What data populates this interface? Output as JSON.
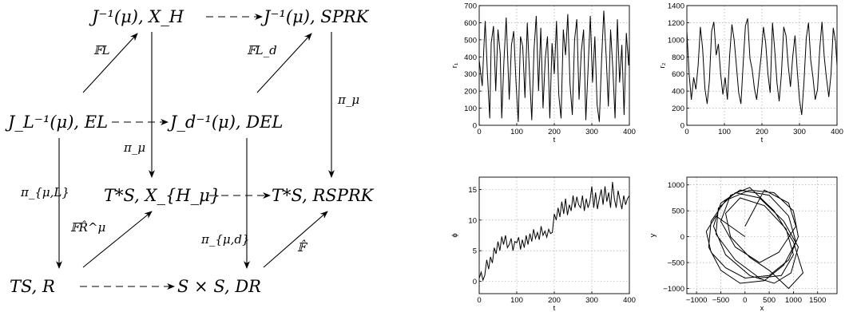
{
  "diagram": {
    "nodes": {
      "top_left": "J⁻¹(μ), X_H",
      "top_right": "J⁻¹(μ), SPRK",
      "mid_left": "J_L⁻¹(μ), EL",
      "mid_right": "J_d⁻¹(μ), DEL",
      "red_left": "T*S, X_{H_μ}",
      "red_right": "T*S, RSPRK",
      "bot_left": "TS, R",
      "bot_right": "S × S, DR"
    },
    "labels": {
      "fl": "𝔽L",
      "fld": "𝔽L_d",
      "pi_mu": "π_μ",
      "pi_mu_right": "π_μ",
      "pi_mu_l": "π_{μ,L}",
      "pi_mu_d": "π_{μ,d}",
      "frhat": "𝔽R̂^μ",
      "fhat": "𝔽̂"
    }
  },
  "chart_data": [
    {
      "type": "line",
      "xlabel": "t",
      "ylabel": "r₁",
      "xlim": [
        0,
        400
      ],
      "ylim": [
        0,
        700
      ],
      "xticks": [
        0,
        100,
        200,
        300,
        400
      ],
      "yticks": [
        0,
        100,
        200,
        300,
        400,
        500,
        600,
        700
      ],
      "grid": true,
      "x": [
        0,
        8,
        12,
        16,
        22,
        28,
        32,
        38,
        44,
        50,
        56,
        60,
        66,
        72,
        80,
        86,
        92,
        98,
        104,
        110,
        116,
        122,
        128,
        134,
        140,
        146,
        152,
        158,
        164,
        170,
        176,
        182,
        188,
        194,
        200,
        206,
        212,
        218,
        224,
        230,
        236,
        242,
        248,
        254,
        260,
        266,
        272,
        278,
        284,
        290,
        296,
        302,
        308,
        314,
        320,
        326,
        332,
        338,
        344,
        350,
        356,
        362,
        368,
        374,
        380,
        386,
        392,
        398,
        400
      ],
      "values": [
        380,
        230,
        430,
        610,
        300,
        40,
        480,
        580,
        200,
        560,
        420,
        40,
        380,
        630,
        150,
        470,
        550,
        250,
        20,
        520,
        460,
        160,
        600,
        300,
        30,
        440,
        640,
        200,
        570,
        100,
        390,
        520,
        40,
        480,
        300,
        610,
        180,
        40,
        560,
        410,
        650,
        240,
        60,
        500,
        620,
        150,
        430,
        560,
        30,
        330,
        640,
        250,
        520,
        120,
        20,
        380,
        670,
        410,
        110,
        560,
        330,
        40,
        620,
        250,
        470,
        60,
        540,
        350,
        480
      ]
    },
    {
      "type": "line",
      "xlabel": "t",
      "ylabel": "r₂",
      "xlim": [
        0,
        400
      ],
      "ylim": [
        0,
        1400
      ],
      "xticks": [
        0,
        100,
        200,
        300,
        400
      ],
      "yticks": [
        0,
        200,
        400,
        600,
        800,
        1000,
        1200,
        1400
      ],
      "grid": true,
      "x": [
        0,
        6,
        12,
        18,
        24,
        30,
        36,
        42,
        48,
        54,
        60,
        66,
        72,
        78,
        84,
        90,
        96,
        102,
        108,
        114,
        120,
        126,
        132,
        138,
        144,
        150,
        156,
        162,
        168,
        174,
        180,
        186,
        192,
        198,
        204,
        210,
        216,
        222,
        228,
        234,
        240,
        246,
        252,
        258,
        264,
        270,
        276,
        282,
        288,
        294,
        300,
        306,
        312,
        318,
        324,
        330,
        336,
        342,
        348,
        354,
        360,
        366,
        372,
        378,
        384,
        390,
        396,
        400
      ],
      "values": [
        1100,
        600,
        300,
        560,
        420,
        700,
        1150,
        900,
        430,
        250,
        520,
        1100,
        1210,
        820,
        950,
        600,
        360,
        560,
        300,
        820,
        1180,
        1000,
        700,
        380,
        250,
        720,
        1160,
        1250,
        780,
        650,
        430,
        300,
        560,
        820,
        1150,
        960,
        600,
        380,
        1200,
        880,
        500,
        280,
        600,
        1150,
        1050,
        700,
        450,
        800,
        1050,
        640,
        300,
        120,
        500,
        1020,
        1200,
        760,
        560,
        300,
        420,
        900,
        1210,
        800,
        550,
        330,
        600,
        1140,
        980,
        700
      ]
    },
    {
      "type": "line",
      "xlabel": "t",
      "ylabel": "ϕ",
      "xlim": [
        0,
        400
      ],
      "ylim": [
        -2,
        17
      ],
      "xticks": [
        0,
        100,
        200,
        300,
        400
      ],
      "yticks": [
        0,
        5,
        10,
        15
      ],
      "grid": true,
      "x": [
        0,
        5,
        10,
        15,
        20,
        25,
        30,
        35,
        40,
        45,
        50,
        55,
        60,
        65,
        70,
        75,
        80,
        85,
        90,
        95,
        100,
        105,
        110,
        115,
        120,
        125,
        130,
        135,
        140,
        145,
        150,
        155,
        160,
        165,
        170,
        175,
        180,
        185,
        190,
        195,
        200,
        205,
        210,
        215,
        220,
        225,
        230,
        235,
        240,
        245,
        250,
        255,
        260,
        265,
        270,
        275,
        280,
        285,
        290,
        295,
        300,
        305,
        310,
        315,
        320,
        325,
        330,
        335,
        340,
        345,
        350,
        355,
        360,
        365,
        370,
        375,
        380,
        385,
        390,
        395,
        400
      ],
      "values": [
        0.5,
        1.5,
        0.2,
        1.0,
        3.5,
        2.0,
        4.0,
        3.0,
        5.5,
        4.5,
        6.5,
        5.0,
        7.3,
        6.0,
        7.5,
        5.5,
        6.0,
        7.0,
        5.0,
        6.5,
        6.3,
        7.2,
        5.2,
        6.8,
        5.5,
        7.5,
        6.0,
        7.8,
        6.5,
        8.5,
        7.0,
        8.0,
        6.8,
        9.0,
        7.5,
        8.2,
        7.2,
        8.5,
        7.8,
        8.0,
        11.0,
        10.0,
        12.0,
        10.5,
        13.0,
        11.0,
        13.5,
        10.8,
        12.5,
        11.5,
        14.0,
        12.0,
        13.8,
        12.5,
        12.0,
        14.0,
        11.5,
        13.5,
        12.0,
        13.0,
        15.5,
        12.0,
        14.5,
        11.8,
        13.5,
        15.0,
        12.5,
        15.5,
        13.0,
        14.5,
        12.0,
        16.2,
        13.5,
        12.0,
        14.8,
        13.2,
        11.8,
        14.0,
        12.5,
        13.5,
        14.0
      ]
    },
    {
      "type": "line",
      "xlabel": "x",
      "ylabel": "y",
      "xlim": [
        -1200,
        1900
      ],
      "ylim": [
        -1100,
        1150
      ],
      "xticks": [
        -1000,
        -500,
        0,
        500,
        1000,
        1500
      ],
      "yticks": [
        -1000,
        -500,
        0,
        500,
        1000
      ],
      "grid": true,
      "x": [
        0,
        -300,
        -600,
        -800,
        -700,
        -400,
        0,
        500,
        900,
        1100,
        1000,
        600,
        100,
        -400,
        -700,
        -750,
        -500,
        -100,
        400,
        800,
        1050,
        900,
        500,
        -100,
        -500,
        -650,
        -400,
        100,
        600,
        950,
        1100,
        800,
        300,
        -200,
        -550,
        -600,
        -200,
        300,
        750,
        1000,
        850,
        400,
        -100,
        -400,
        -300,
        100,
        500,
        900,
        1200,
        1000,
        600,
        100,
        -300,
        -500,
        -200,
        300,
        700,
        1050,
        900,
        400,
        0
      ],
      "values": [
        0,
        200,
        400,
        100,
        -300,
        -600,
        -800,
        -750,
        -450,
        0,
        500,
        850,
        900,
        700,
        300,
        -200,
        -650,
        -900,
        -850,
        -550,
        -100,
        400,
        800,
        900,
        650,
        200,
        -350,
        -750,
        -900,
        -700,
        -200,
        300,
        750,
        850,
        550,
        50,
        -450,
        -800,
        -750,
        -350,
        150,
        600,
        750,
        450,
        0,
        -400,
        -650,
        -1000,
        -700,
        -100,
        500,
        950,
        800,
        300,
        -200,
        -500,
        -300,
        200,
        650,
        900,
        200
      ]
    }
  ]
}
